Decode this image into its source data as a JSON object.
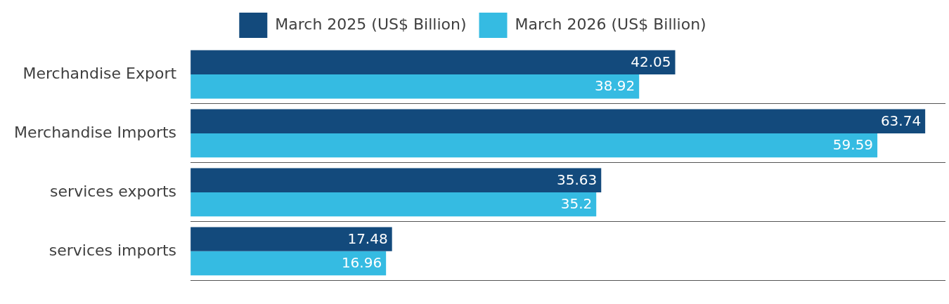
{
  "chart_data": {
    "type": "bar",
    "orientation": "horizontal",
    "categories": [
      "Merchandise Export",
      "Merchandise Imports",
      "services exports",
      "services imports"
    ],
    "series": [
      {
        "name": "March 2025 (US$ Billion)",
        "color": "#134a7c",
        "values": [
          42.05,
          63.74,
          35.63,
          17.48
        ]
      },
      {
        "name": "March 2026 (US$ Billion)",
        "color": "#35bbe2",
        "values": [
          38.92,
          59.59,
          35.2,
          16.96
        ]
      }
    ],
    "xlim": [
      0,
      65.5
    ],
    "data_labels": true,
    "legend": "top",
    "grid": "y",
    "tick_labels": "y"
  }
}
